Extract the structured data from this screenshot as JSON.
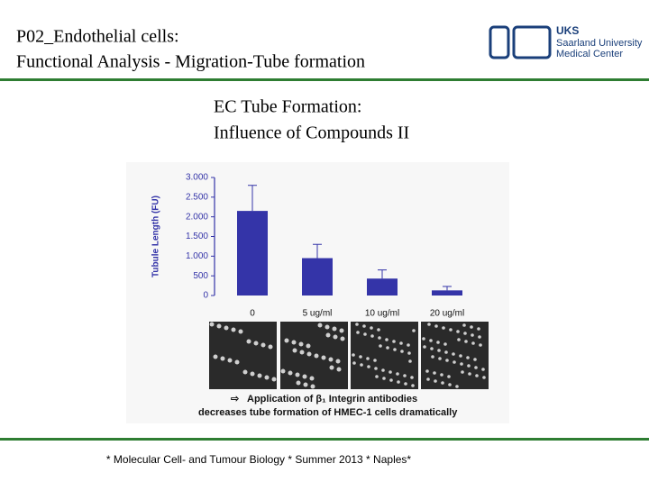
{
  "header": {
    "title_lines": [
      "P02_Endothelial cells:",
      "Functional Analysis - Migration-Tube formation"
    ]
  },
  "logo": {
    "abbr": "UKS",
    "lines": [
      "Saarland University",
      "Medical Center"
    ]
  },
  "slide_title": [
    "EC Tube Formation:",
    "Influence of Compounds II"
  ],
  "chart_data": {
    "type": "bar",
    "ylabel": "Tubule Length (FU)",
    "categories": [
      "0",
      "5 ug/ml",
      "10 ug/ml",
      "20 ug/ml"
    ],
    "values": [
      2150,
      950,
      430,
      130
    ],
    "errors": [
      650,
      350,
      220,
      100
    ],
    "color": "#3434a8",
    "ylim": [
      0,
      3000
    ],
    "yticks": [
      0,
      {
        "value": 500,
        "label": "500"
      },
      {
        "value": 1000,
        "label": "1.000"
      },
      {
        "value": 1500,
        "label": "1.500"
      },
      {
        "value": 2000,
        "label": "2.000"
      },
      {
        "value": 2500,
        "label": "2.500"
      },
      {
        "value": 3000,
        "label": "3.000"
      }
    ]
  },
  "caption": [
    "Application of β₁ Integrin antibodies",
    "decreases tube formation of HMEC-1 cells dramatically"
  ],
  "footer": "* Molecular Cell- and Tumour Biology * Summer 2013 * Naples*"
}
